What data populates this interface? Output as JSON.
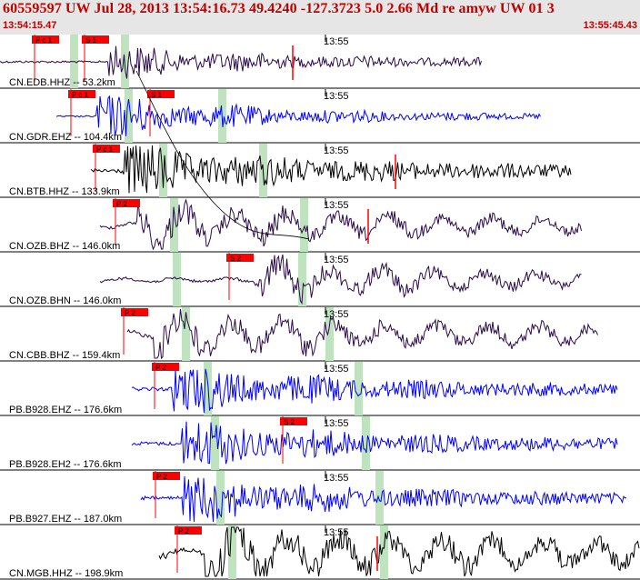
{
  "header": {
    "title": "60559597 UW Jul 28, 2013 13:54:16.73   49.4240 -127.3723   5.0 2.66 Md re amyw UW 01   3",
    "start_time": "13:54:15.47",
    "end_time": "13:55:45.43"
  },
  "minute_tick_label": "13:55",
  "colors": {
    "pick": "#ff0000",
    "highlight": "#bfe3bf",
    "black": "#000000",
    "blue": "#0000ff",
    "purple": "#2a0a4a"
  },
  "traces": [
    {
      "label": "CN.EDB.HHZ -- 53.2km",
      "color": "purple",
      "picks": [
        "P c 1",
        "S 1"
      ]
    },
    {
      "label": "CN.GDR.EHZ -- 104.4km",
      "color": "blue",
      "picks": [
        "P c 1",
        "S 1"
      ]
    },
    {
      "label": "CN.BTB.HHZ -- 133.9km",
      "color": "black",
      "picks": [
        "P c 1"
      ]
    },
    {
      "label": "CN.OZB.BHZ -- 146.0km",
      "color": "purple",
      "picks": [
        "P 2"
      ]
    },
    {
      "label": "CN.OZB.BHN -- 146.0km",
      "color": "purple",
      "picks": [
        "S 2"
      ]
    },
    {
      "label": "CN.CBB.BHZ -- 159.4km",
      "color": "purple",
      "picks": [
        "P 2"
      ]
    },
    {
      "label": "PB.B928.EHZ -- 176.6km",
      "color": "blue",
      "picks": [
        "P 2"
      ]
    },
    {
      "label": "PB.B928.EH2 -- 176.6km",
      "color": "blue",
      "picks": [
        "S 2"
      ]
    },
    {
      "label": "PB.B927.EHZ -- 187.0km",
      "color": "blue",
      "picks": [
        "P 2"
      ]
    },
    {
      "label": "CN.MGB.HHZ -- 198.9km",
      "color": "black",
      "picks": [
        "P 2"
      ]
    }
  ]
}
